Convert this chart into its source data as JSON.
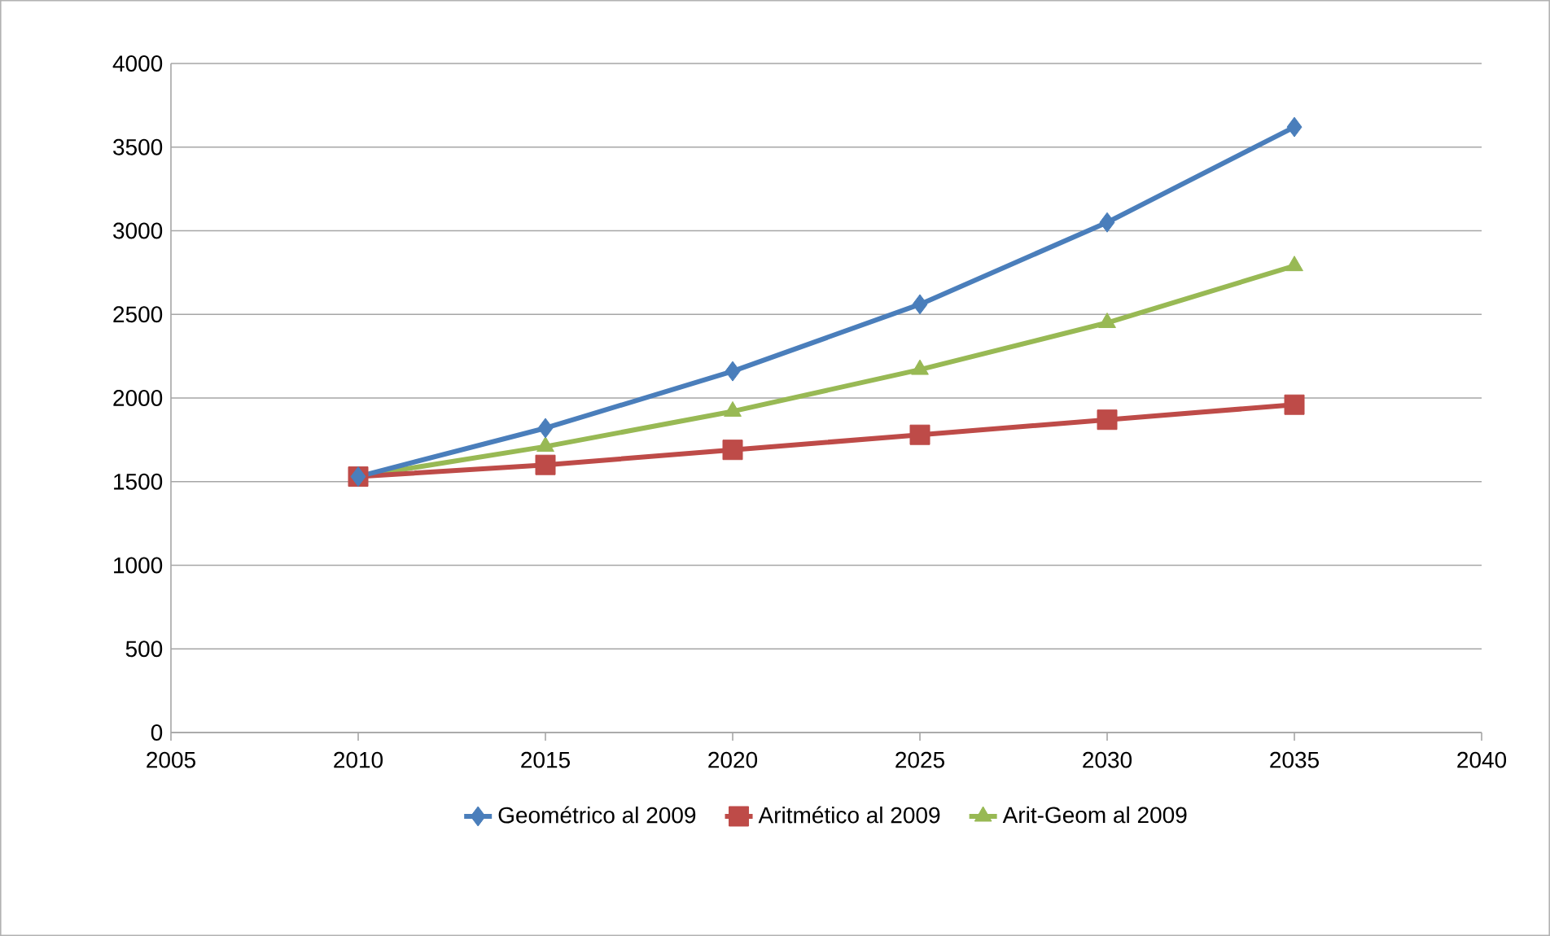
{
  "chart_data": {
    "type": "line",
    "x": [
      2010,
      2015,
      2020,
      2025,
      2030,
      2035
    ],
    "series": [
      {
        "name": "Geométrico al 2009",
        "color": "#4a7ebb",
        "marker": "diamond",
        "values": [
          1530,
          1820,
          2160,
          2560,
          3050,
          3620
        ]
      },
      {
        "name": "Aritmético al 2009",
        "color": "#be4b48",
        "marker": "square",
        "values": [
          1530,
          1600,
          1690,
          1780,
          1870,
          1960
        ]
      },
      {
        "name": "Arit-Geom al 2009",
        "color": "#98b954",
        "marker": "triangle",
        "values": [
          1530,
          1710,
          1920,
          2170,
          2450,
          2790
        ]
      }
    ],
    "xlim": [
      2005,
      2040
    ],
    "xticks": [
      2005,
      2010,
      2015,
      2020,
      2025,
      2030,
      2035,
      2040
    ],
    "ylim": [
      0,
      4000
    ],
    "yticks": [
      0,
      500,
      1000,
      1500,
      2000,
      2500,
      3000,
      3500,
      4000
    ],
    "grid": "y",
    "legend": "bottom",
    "line_style": "solid"
  }
}
